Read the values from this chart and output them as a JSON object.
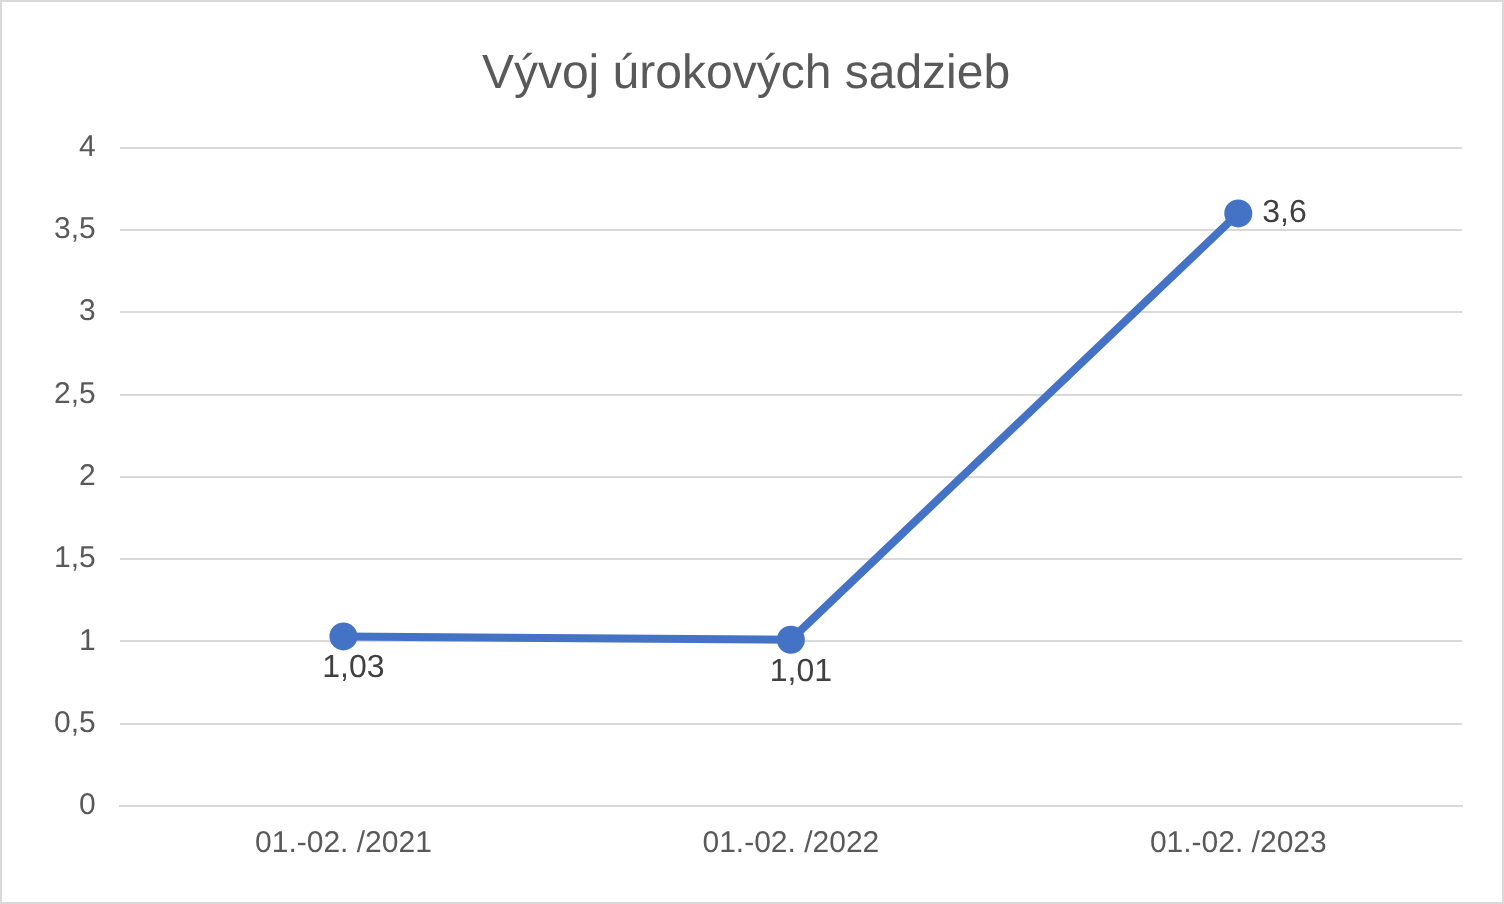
{
  "chart_data": {
    "type": "line",
    "title": "Vývoj úrokových sadzieb",
    "categories": [
      "01.-02. /2021",
      "01.-02. /2022",
      "01.-02. /2023"
    ],
    "series": [
      {
        "color": "#4472c4",
        "values": [
          1.03,
          1.01,
          3.6
        ],
        "value_labels": [
          "1,03",
          "1,01",
          "3,6"
        ]
      }
    ],
    "ylim": [
      0,
      4
    ],
    "yticks": [
      0,
      {
        "value": 0.5,
        "label": "0,5"
      },
      1,
      {
        "value": 1.5,
        "label": "1,5"
      },
      2,
      {
        "value": 2.5,
        "label": "2,5"
      },
      3,
      {
        "value": 3.5,
        "label": "3,5"
      },
      4
    ],
    "grid": "y",
    "legend": false,
    "marker": "circle",
    "line_style": "solid"
  }
}
